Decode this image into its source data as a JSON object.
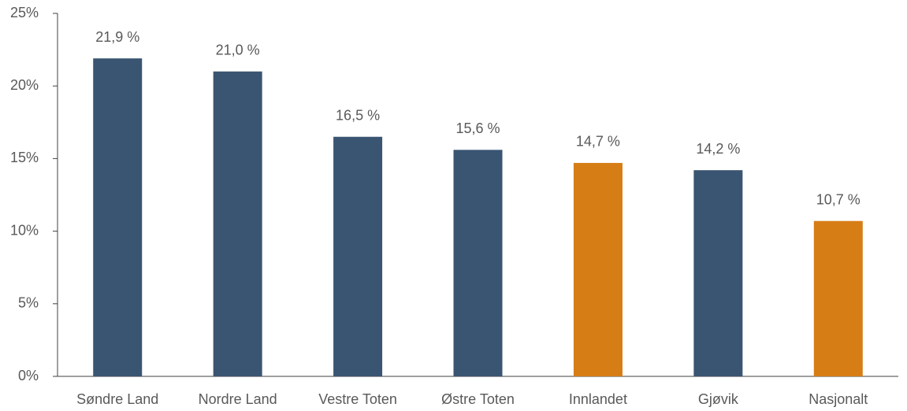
{
  "chart_data": {
    "type": "bar",
    "categories": [
      "Søndre Land",
      "Nordre Land",
      "Vestre Toten",
      "Østre Toten",
      "Innlandet",
      "Gjøvik",
      "Nasjonalt"
    ],
    "values": [
      21.9,
      21.0,
      16.5,
      15.6,
      14.7,
      14.2,
      10.7
    ],
    "value_labels": [
      "21,9 %",
      "21,0 %",
      "16,5 %",
      "15,6 %",
      "14,7 %",
      "14,2 %",
      "10,7 %"
    ],
    "colors": [
      "#3a5572",
      "#3a5572",
      "#3a5572",
      "#3a5572",
      "#d67d16",
      "#3a5572",
      "#d67d16"
    ],
    "ylim": [
      0,
      25
    ],
    "yticks": [
      {
        "value": 0,
        "label": "0%"
      },
      {
        "value": 5,
        "label": "5%"
      },
      {
        "value": 10,
        "label": "10%"
      },
      {
        "value": 15,
        "label": "15%"
      },
      {
        "value": 20,
        "label": "20%"
      },
      {
        "value": 25,
        "label": "25%"
      }
    ],
    "grid": false
  }
}
